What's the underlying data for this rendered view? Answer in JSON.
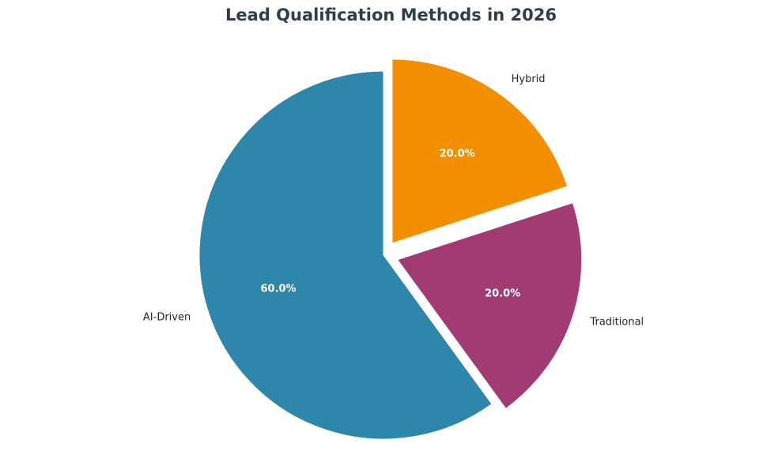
{
  "chart_data": {
    "type": "pie",
    "title": "Lead Qualification Methods in 2026",
    "slices": [
      {
        "label": "AI-Driven",
        "value": 60.0,
        "pct_label": "60.0%",
        "color": "#2e86ab",
        "exploded": false
      },
      {
        "label": "Traditional",
        "value": 20.0,
        "pct_label": "20.0%",
        "color": "#a23b72",
        "exploded": true
      },
      {
        "label": "Hybrid",
        "value": 20.0,
        "pct_label": "20.0%",
        "color": "#f18f01",
        "exploded": true
      }
    ],
    "start_angle": 90,
    "direction": "counterclockwise",
    "legend": "none"
  }
}
